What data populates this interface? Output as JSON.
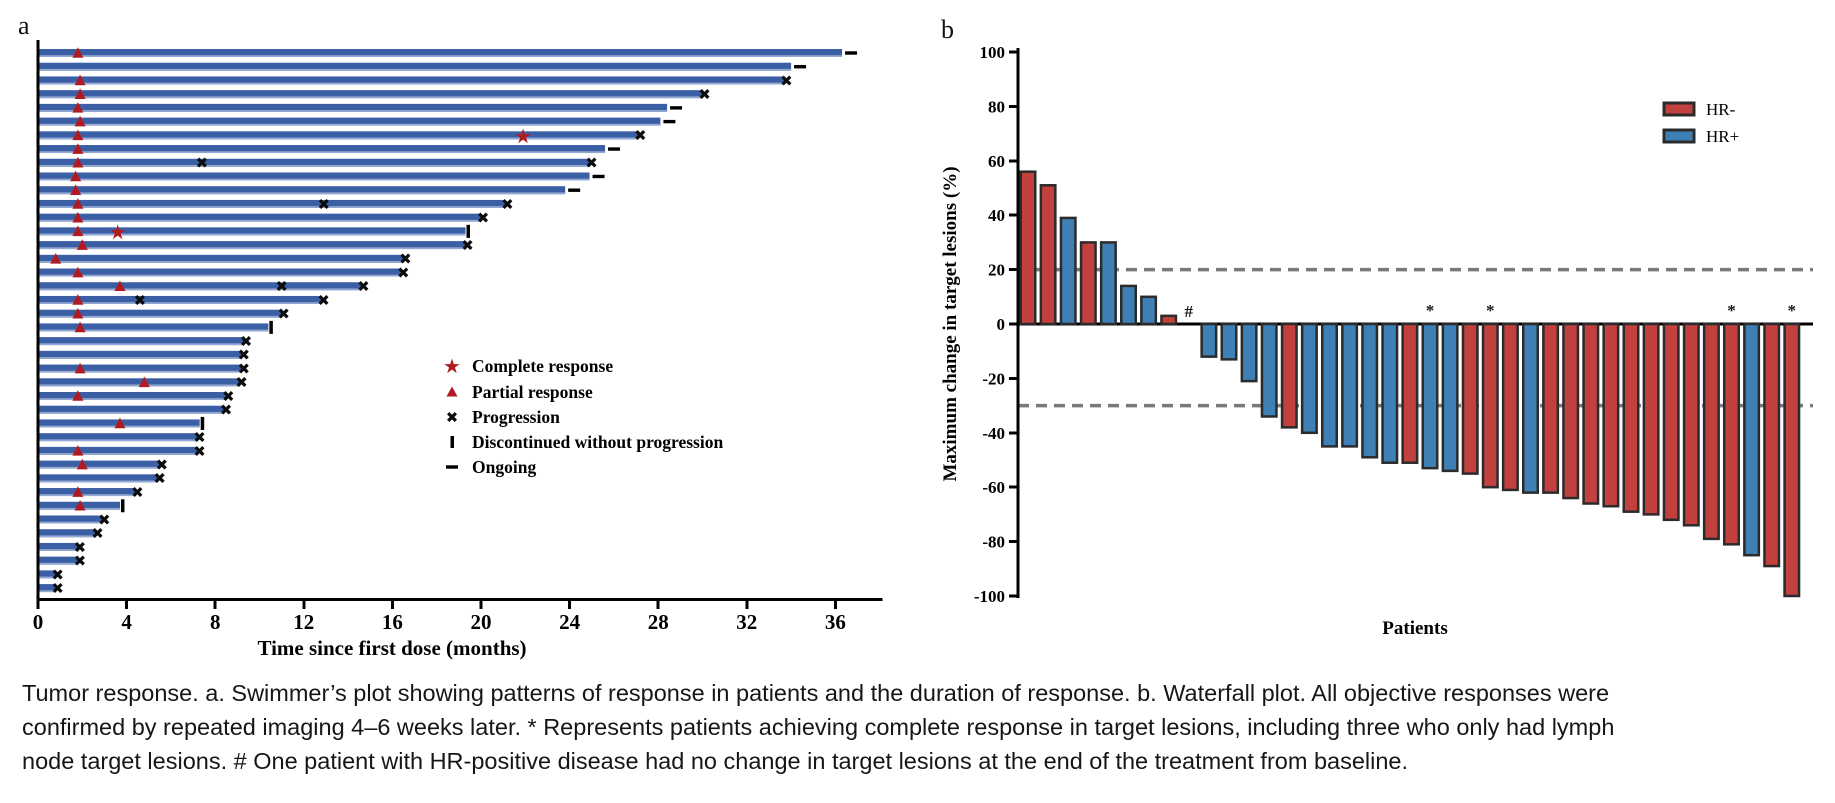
{
  "caption_lines": [
    "Tumor response. a. Swimmer’s plot showing patterns of response in patients and the duration of response. b. Waterfall plot. All objective responses were",
    "confirmed by repeated imaging 4–6 weeks later. * Represents patients achieving complete response in target lesions, including three who only had lymph",
    "node target lesions. # One patient with HR-positive disease had no change in target lesions at the end of the treatment from baseline."
  ],
  "colors": {
    "swimmer_bar": "#3b5fa5",
    "swimmer_bar_highlight": "#93a9d1",
    "marker_red": "#b01b21",
    "hr_neg": "#c2403d",
    "hr_pos": "#3e80b6",
    "axis": "#000000",
    "ref_line": "#7a7a7a",
    "bar_outline": "#2b2b2b"
  },
  "chart_data": [
    {
      "type": "bar",
      "subtype": "swimmer",
      "panel_label": "a",
      "xlabel": "Time since first dose (months)",
      "x_ticks": [
        0,
        4,
        8,
        12,
        16,
        20,
        24,
        28,
        32,
        36
      ],
      "xlim": [
        0,
        38
      ],
      "legend": [
        {
          "marker": "star",
          "label": "Complete response"
        },
        {
          "marker": "triangle",
          "label": "Partial response"
        },
        {
          "marker": "x",
          "label": "Progression"
        },
        {
          "marker": "bar",
          "label": "Discontinued without progression"
        },
        {
          "marker": "dash",
          "label": "Ongoing"
        }
      ],
      "patients": [
        {
          "duration": 36.3,
          "end_event": "ongoing",
          "pr_at": 1.8,
          "cr_at": null,
          "progression_at": null
        },
        {
          "duration": 34.0,
          "end_event": "ongoing",
          "pr_at": null,
          "cr_at": null,
          "progression_at": null
        },
        {
          "duration": 33.7,
          "end_event": "progression",
          "pr_at": 1.9,
          "cr_at": null,
          "progression_at": null
        },
        {
          "duration": 30.0,
          "end_event": "progression",
          "pr_at": 1.9,
          "cr_at": null,
          "progression_at": null
        },
        {
          "duration": 28.4,
          "end_event": "ongoing",
          "pr_at": 1.8,
          "cr_at": null,
          "progression_at": null
        },
        {
          "duration": 28.1,
          "end_event": "ongoing",
          "pr_at": 1.9,
          "cr_at": null,
          "progression_at": null
        },
        {
          "duration": 27.1,
          "end_event": "progression",
          "pr_at": 1.8,
          "cr_at": 21.9,
          "progression_at": null
        },
        {
          "duration": 25.6,
          "end_event": "ongoing",
          "pr_at": 1.8,
          "cr_at": null,
          "progression_at": null
        },
        {
          "duration": 24.9,
          "end_event": "progression",
          "pr_at": 1.8,
          "cr_at": null,
          "progression_at": 7.4
        },
        {
          "duration": 24.9,
          "end_event": "ongoing",
          "pr_at": 1.7,
          "cr_at": null,
          "progression_at": null
        },
        {
          "duration": 23.8,
          "end_event": "ongoing",
          "pr_at": 1.7,
          "cr_at": null,
          "progression_at": null
        },
        {
          "duration": 21.1,
          "end_event": "progression",
          "pr_at": 1.8,
          "cr_at": null,
          "progression_at": 12.9
        },
        {
          "duration": 20.0,
          "end_event": "progression",
          "pr_at": 1.8,
          "cr_at": null,
          "progression_at": null
        },
        {
          "duration": 19.3,
          "end_event": "discontinued",
          "pr_at": 1.8,
          "cr_at": 3.6,
          "progression_at": null
        },
        {
          "duration": 19.3,
          "end_event": "progression",
          "pr_at": 2.0,
          "cr_at": null,
          "progression_at": null
        },
        {
          "duration": 16.5,
          "end_event": "progression",
          "pr_at": 0.8,
          "cr_at": null,
          "progression_at": null
        },
        {
          "duration": 16.4,
          "end_event": "progression",
          "pr_at": 1.8,
          "cr_at": null,
          "progression_at": null
        },
        {
          "duration": 14.6,
          "end_event": "progression",
          "pr_at": 3.7,
          "cr_at": null,
          "progression_at": 11.0
        },
        {
          "duration": 12.8,
          "end_event": "progression",
          "pr_at": 1.8,
          "cr_at": null,
          "progression_at": 4.6
        },
        {
          "duration": 11.0,
          "end_event": "progression",
          "pr_at": 1.8,
          "cr_at": null,
          "progression_at": null
        },
        {
          "duration": 10.4,
          "end_event": "discontinued",
          "pr_at": 1.9,
          "cr_at": null,
          "progression_at": null
        },
        {
          "duration": 9.3,
          "end_event": "progression",
          "pr_at": null,
          "cr_at": null,
          "progression_at": null
        },
        {
          "duration": 9.2,
          "end_event": "progression",
          "pr_at": null,
          "cr_at": null,
          "progression_at": null
        },
        {
          "duration": 9.2,
          "end_event": "progression",
          "pr_at": 1.9,
          "cr_at": null,
          "progression_at": null
        },
        {
          "duration": 9.1,
          "end_event": "progression",
          "pr_at": 4.8,
          "cr_at": null,
          "progression_at": null
        },
        {
          "duration": 8.5,
          "end_event": "progression",
          "pr_at": 1.8,
          "cr_at": null,
          "progression_at": null
        },
        {
          "duration": 8.4,
          "end_event": "progression",
          "pr_at": null,
          "cr_at": null,
          "progression_at": null
        },
        {
          "duration": 7.3,
          "end_event": "discontinued",
          "pr_at": 3.7,
          "cr_at": null,
          "progression_at": null
        },
        {
          "duration": 7.2,
          "end_event": "progression",
          "pr_at": null,
          "cr_at": null,
          "progression_at": null
        },
        {
          "duration": 7.2,
          "end_event": "progression",
          "pr_at": 1.8,
          "cr_at": null,
          "progression_at": null
        },
        {
          "duration": 5.5,
          "end_event": "progression",
          "pr_at": 2.0,
          "cr_at": null,
          "progression_at": null
        },
        {
          "duration": 5.4,
          "end_event": "progression",
          "pr_at": null,
          "cr_at": null,
          "progression_at": null
        },
        {
          "duration": 4.4,
          "end_event": "progression",
          "pr_at": 1.8,
          "cr_at": null,
          "progression_at": null
        },
        {
          "duration": 3.7,
          "end_event": "discontinued",
          "pr_at": 1.9,
          "cr_at": null,
          "progression_at": null
        },
        {
          "duration": 2.9,
          "end_event": "progression",
          "pr_at": null,
          "cr_at": null,
          "progression_at": null
        },
        {
          "duration": 2.6,
          "end_event": "progression",
          "pr_at": null,
          "cr_at": null,
          "progression_at": null
        },
        {
          "duration": 1.8,
          "end_event": "progression",
          "pr_at": null,
          "cr_at": null,
          "progression_at": null
        },
        {
          "duration": 1.8,
          "end_event": "progression",
          "pr_at": null,
          "cr_at": null,
          "progression_at": null
        },
        {
          "duration": 0.8,
          "end_event": "progression",
          "pr_at": null,
          "cr_at": null,
          "progression_at": null
        },
        {
          "duration": 0.8,
          "end_event": "progression",
          "pr_at": null,
          "cr_at": null,
          "progression_at": null
        }
      ]
    },
    {
      "type": "bar",
      "subtype": "waterfall",
      "panel_label": "b",
      "ylabel": "Maximum change in target lesions (%)",
      "xlabel": "Patients",
      "ylim": [
        -100,
        100
      ],
      "y_ticks": [
        100,
        80,
        60,
        40,
        20,
        0,
        -20,
        -40,
        -60,
        -80,
        -100
      ],
      "ref_lines": [
        20,
        -30
      ],
      "legend": [
        {
          "label": "HR-",
          "group": "HR-"
        },
        {
          "label": "HR+",
          "group": "HR+"
        }
      ],
      "patients": [
        {
          "change": 56,
          "group": "HR-",
          "mark": null
        },
        {
          "change": 51,
          "group": "HR-",
          "mark": null
        },
        {
          "change": 39,
          "group": "HR+",
          "mark": null
        },
        {
          "change": 30,
          "group": "HR-",
          "mark": null
        },
        {
          "change": 30,
          "group": "HR+",
          "mark": null
        },
        {
          "change": 14,
          "group": "HR+",
          "mark": null
        },
        {
          "change": 10,
          "group": "HR+",
          "mark": null
        },
        {
          "change": 3,
          "group": "HR-",
          "mark": null
        },
        {
          "change": 0,
          "group": "HR+",
          "mark": "#"
        },
        {
          "change": -12,
          "group": "HR+",
          "mark": null
        },
        {
          "change": -13,
          "group": "HR+",
          "mark": null
        },
        {
          "change": -21,
          "group": "HR+",
          "mark": null
        },
        {
          "change": -34,
          "group": "HR+",
          "mark": null
        },
        {
          "change": -38,
          "group": "HR-",
          "mark": null
        },
        {
          "change": -40,
          "group": "HR+",
          "mark": null
        },
        {
          "change": -45,
          "group": "HR+",
          "mark": null
        },
        {
          "change": -45,
          "group": "HR+",
          "mark": null
        },
        {
          "change": -49,
          "group": "HR+",
          "mark": null
        },
        {
          "change": -51,
          "group": "HR+",
          "mark": null
        },
        {
          "change": -51,
          "group": "HR-",
          "mark": null
        },
        {
          "change": -53,
          "group": "HR+",
          "mark": "*"
        },
        {
          "change": -54,
          "group": "HR+",
          "mark": null
        },
        {
          "change": -55,
          "group": "HR-",
          "mark": null
        },
        {
          "change": -60,
          "group": "HR-",
          "mark": "*"
        },
        {
          "change": -61,
          "group": "HR-",
          "mark": null
        },
        {
          "change": -62,
          "group": "HR+",
          "mark": null
        },
        {
          "change": -62,
          "group": "HR-",
          "mark": null
        },
        {
          "change": -64,
          "group": "HR-",
          "mark": null
        },
        {
          "change": -66,
          "group": "HR-",
          "mark": null
        },
        {
          "change": -67,
          "group": "HR-",
          "mark": null
        },
        {
          "change": -69,
          "group": "HR-",
          "mark": null
        },
        {
          "change": -70,
          "group": "HR-",
          "mark": null
        },
        {
          "change": -72,
          "group": "HR-",
          "mark": null
        },
        {
          "change": -74,
          "group": "HR-",
          "mark": null
        },
        {
          "change": -79,
          "group": "HR-",
          "mark": null
        },
        {
          "change": -81,
          "group": "HR-",
          "mark": "*"
        },
        {
          "change": -85,
          "group": "HR+",
          "mark": null
        },
        {
          "change": -89,
          "group": "HR-",
          "mark": null
        },
        {
          "change": -100,
          "group": "HR-",
          "mark": "*"
        }
      ]
    }
  ]
}
